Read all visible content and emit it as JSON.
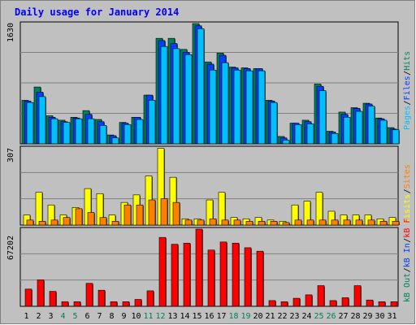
{
  "title": "Daily usage for January 2014",
  "panels": {
    "hits": {
      "ymax_label": "1630",
      "side_label_parts": [
        "Pages",
        "/",
        "Files",
        "/",
        "Hits"
      ]
    },
    "sites": {
      "ymax_label": "307",
      "side_label_parts": [
        "Visits",
        "/",
        "Sites"
      ]
    },
    "kbytes": {
      "ymax_label": "67202",
      "side_label_parts": [
        "kB Out",
        "/",
        "kB In",
        "/",
        "kB F"
      ]
    }
  },
  "colors": {
    "background": "#c0c0c0",
    "hits": "#00805c",
    "files": "#0040ff",
    "pages": "#00c0ff",
    "visits": "#ffff00",
    "sites": "#ff8000",
    "kbytes": "#ff0000",
    "weekend_label": "#00805c",
    "weekday_label": "#000000",
    "title": "#0000ff"
  },
  "chart_data": {
    "type": "bar",
    "x": [
      "1",
      "2",
      "3",
      "4",
      "5",
      "6",
      "7",
      "8",
      "9",
      "10",
      "11",
      "12",
      "13",
      "14",
      "15",
      "16",
      "17",
      "18",
      "19",
      "20",
      "21",
      "22",
      "23",
      "24",
      "25",
      "26",
      "27",
      "28",
      "29",
      "30",
      "31"
    ],
    "weekend_days": [
      "4",
      "5",
      "11",
      "12",
      "18",
      "19",
      "25",
      "26"
    ],
    "panels": [
      {
        "ylim": [
          0,
          1630
        ],
        "series": [
          {
            "name": "Hits",
            "values": [
              590,
              770,
              380,
              320,
              360,
              450,
              330,
              120,
              290,
              360,
              660,
              1430,
              1430,
              1280,
              1630,
              1110,
              1230,
              1040,
              1030,
              1020,
              590,
              100,
              280,
              320,
              810,
              170,
              430,
              490,
              550,
              350,
              220
            ]
          },
          {
            "name": "Files",
            "values": [
              580,
              700,
              360,
              300,
              350,
              400,
              300,
              110,
              280,
              360,
              660,
              1400,
              1360,
              1240,
              1600,
              1080,
              1200,
              1030,
              1020,
              1020,
              580,
              80,
              280,
              300,
              780,
              160,
              400,
              480,
              540,
              340,
              200
            ]
          },
          {
            "name": "Pages",
            "values": [
              560,
              640,
              340,
              290,
              340,
              340,
              250,
              80,
              260,
              330,
              590,
              1320,
              1290,
              1210,
              1560,
              1000,
              1100,
              1000,
              990,
              990,
              560,
              50,
              260,
              270,
              720,
              140,
              360,
              440,
              510,
              320,
              190
            ]
          }
        ]
      },
      {
        "ylim": [
          0,
          307
        ],
        "series": [
          {
            "name": "Visits",
            "values": [
              40,
              130,
              80,
              40,
              70,
              145,
              125,
              40,
              90,
              120,
              195,
              305,
              190,
              25,
              25,
              100,
              130,
              30,
              25,
              30,
              20,
              15,
              80,
              95,
              130,
              55,
              40,
              40,
              40,
              25,
              30
            ]
          },
          {
            "name": "Sites",
            "values": [
              20,
              15,
              20,
              30,
              65,
              50,
              30,
              15,
              80,
              80,
              100,
              105,
              90,
              20,
              20,
              25,
              20,
              20,
              15,
              15,
              15,
              10,
              20,
              20,
              20,
              20,
              20,
              20,
              20,
              15,
              15
            ]
          }
        ]
      },
      {
        "ylim": [
          0,
          67202
        ],
        "series": [
          {
            "name": "kB F",
            "values": [
              15000,
              23000,
              13000,
              4000,
              4000,
              20000,
              14000,
              4000,
              4000,
              6000,
              13500,
              60000,
              54000,
              55000,
              67202,
              49000,
              56000,
              55000,
              51000,
              48000,
              5000,
              4000,
              7000,
              10000,
              18000,
              5000,
              7500,
              18000,
              5500,
              4000,
              4000
            ]
          }
        ]
      }
    ]
  }
}
